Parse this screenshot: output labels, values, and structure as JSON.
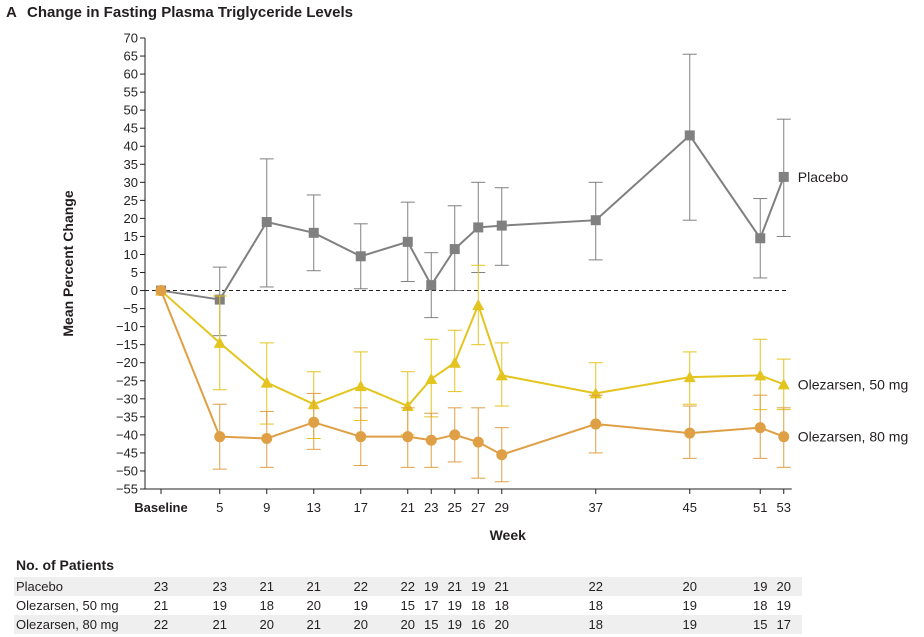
{
  "panel": {
    "letter": "A",
    "title": "Change in Fasting Plasma Triglyceride Levels"
  },
  "chart_data": {
    "type": "line",
    "title": "Change in Fasting Plasma Triglyceride Levels",
    "xlabel": "Week",
    "ylabel": "Mean Percent Change",
    "ylim": [
      -55,
      70
    ],
    "ytick_step": 5,
    "x_positions": [
      0,
      5,
      9,
      13,
      17,
      21,
      23,
      25,
      27,
      29,
      37,
      45,
      51,
      53
    ],
    "xtick_labels": [
      "Baseline",
      "5",
      "9",
      "13",
      "17",
      "21",
      "23",
      "25",
      "27",
      "29",
      "37",
      "45",
      "51",
      "53"
    ],
    "reference_line": 0,
    "series": [
      {
        "name": "Placebo",
        "marker": "square",
        "color": "#808080",
        "values": [
          0,
          -2.5,
          19,
          16,
          9.5,
          13.5,
          1.5,
          11.5,
          17.5,
          18,
          19.5,
          43,
          14.5,
          31.5
        ],
        "err_low": [
          null,
          -12.5,
          1,
          5.5,
          0.5,
          2.5,
          -7.5,
          0,
          5,
          7,
          8.5,
          19.5,
          3.5,
          15
        ],
        "err_high": [
          null,
          6.5,
          36.5,
          26.5,
          18.5,
          24.5,
          10.5,
          23.5,
          30,
          28.5,
          30,
          65.5,
          25.5,
          47.5
        ]
      },
      {
        "name": "Olezarsen, 50 mg",
        "marker": "triangle",
        "color": "#e4c41f",
        "values": [
          0,
          -14.5,
          -25.5,
          -31.5,
          -26.5,
          -32,
          -24.5,
          -20,
          -4,
          -23.5,
          -28.5,
          -24,
          -23.5,
          -26
        ],
        "err_low": [
          null,
          -27.5,
          -37,
          -41,
          -36,
          -40,
          -35,
          -28,
          -15,
          -32,
          -37.5,
          -31.5,
          -33,
          -33
        ],
        "err_high": [
          null,
          -1.5,
          -14.5,
          -22.5,
          -17,
          -22.5,
          -13.5,
          -11,
          7,
          -14.5,
          -20,
          -17,
          -13.5,
          -19
        ]
      },
      {
        "name": "Olezarsen, 80 mg",
        "marker": "circle",
        "color": "#df9f44",
        "values": [
          0,
          -40.5,
          -41,
          -36.5,
          -40.5,
          -40.5,
          -41.5,
          -40,
          -42,
          -45.5,
          -37,
          -39.5,
          -38,
          -40.5
        ],
        "err_low": [
          null,
          -49.5,
          -49,
          -44,
          -48.5,
          -49,
          -49,
          -47.5,
          -52,
          -53,
          -45,
          -46.5,
          -46.5,
          -49
        ],
        "err_high": [
          null,
          -31.5,
          -33.5,
          -28.5,
          -32.5,
          -32.5,
          -34,
          -32.5,
          -32.5,
          -38,
          -29,
          -32,
          -29,
          -32.5
        ]
      }
    ],
    "patients_at_risk": {
      "title": "No. of Patients",
      "weeks": [
        0,
        5,
        9,
        13,
        17,
        21,
        23,
        25,
        27,
        29,
        37,
        45,
        51,
        53
      ],
      "rows": [
        {
          "label": "Placebo",
          "values": [
            "23",
            "23",
            "21",
            "21",
            "22",
            "22",
            "19",
            "21",
            "19",
            "21",
            "22",
            "20",
            "19",
            "20"
          ]
        },
        {
          "label": "Olezarsen, 50 mg",
          "values": [
            "21",
            "19",
            "18",
            "20",
            "19",
            "15",
            "17",
            "19",
            "18",
            "18",
            "18",
            "19",
            "18",
            "19"
          ]
        },
        {
          "label": "Olezarsen, 80 mg",
          "values": [
            "22",
            "21",
            "20",
            "21",
            "20",
            "20",
            "15",
            "19",
            "16",
            "20",
            "18",
            "19",
            "15",
            "17"
          ]
        }
      ]
    }
  }
}
